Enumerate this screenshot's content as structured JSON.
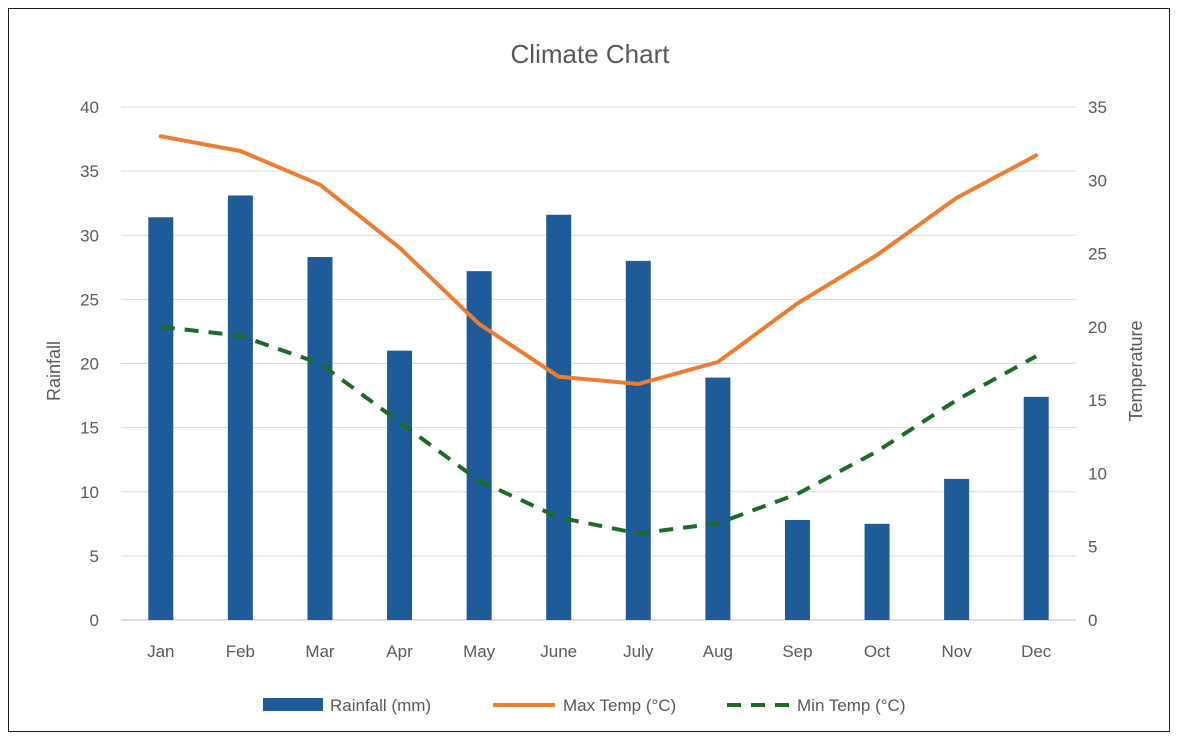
{
  "chart_data": {
    "type": "bar",
    "title": "Climate Chart",
    "categories": [
      "Jan",
      "Feb",
      "Mar",
      "Apr",
      "May",
      "June",
      "July",
      "Aug",
      "Sep",
      "Oct",
      "Nov",
      "Dec"
    ],
    "y_left": {
      "label": "Rainfall",
      "range": [
        0,
        40
      ],
      "ticks": [
        "0",
        "5",
        "10",
        "15",
        "20",
        "25",
        "30",
        "35",
        "40"
      ]
    },
    "y_right": {
      "label": "Temperature",
      "range": [
        0,
        35
      ],
      "ticks": [
        "0",
        "5",
        "10",
        "15",
        "20",
        "25",
        "30",
        "35"
      ]
    },
    "grid": true,
    "legend_position": "bottom",
    "series": [
      {
        "name": "Rainfall (mm)",
        "type": "bar",
        "axis": "left",
        "color": "#1f5b99",
        "values": [
          31.4,
          33.1,
          28.3,
          21.0,
          27.2,
          31.6,
          28.0,
          18.9,
          7.8,
          7.5,
          11.0,
          17.4
        ]
      },
      {
        "name": "Max Temp (°C)",
        "type": "line",
        "axis": "right",
        "color": "#ed7d31",
        "values": [
          33.0,
          32.0,
          29.7,
          25.4,
          20.2,
          16.6,
          16.1,
          17.6,
          21.6,
          24.9,
          28.8,
          31.7
        ]
      },
      {
        "name": "Min Temp (°C)",
        "type": "line",
        "dash": "dashed",
        "axis": "right",
        "color": "#1e6b25",
        "values": [
          20.0,
          19.4,
          17.5,
          13.5,
          9.5,
          7.0,
          5.9,
          6.6,
          8.6,
          11.5,
          15.0,
          18.0
        ]
      }
    ]
  }
}
